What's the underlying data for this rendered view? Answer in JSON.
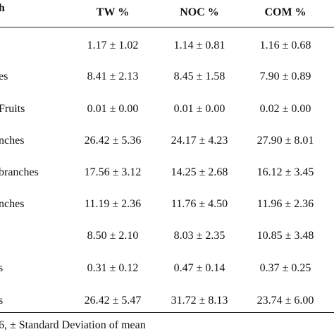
{
  "table": {
    "header": [
      "h",
      "TW %",
      "NOC %",
      "COM %"
    ],
    "rows": [
      {
        "cells": [
          "1.17 ± 1.02",
          "1.14 ± 0.81",
          "1.16 ± 0.68"
        ]
      },
      {
        "label": "es",
        "cells": [
          "8.41 ± 2.13",
          "8.45 ± 1.58",
          "7.90 ± 0.89"
        ]
      },
      {
        "label": "Fruits",
        "cells": [
          "0.01 ± 0.00",
          "0.01 ± 0.00",
          "0.02 ± 0.00"
        ]
      },
      {
        "label": "nches",
        "cells": [
          "26.42 ± 5.36",
          "24.17 ± 4.23",
          "27.90 ± 8.01"
        ]
      },
      {
        "label": "branches",
        "cells": [
          "17.56 ± 3.12",
          "14.25 ± 2.68",
          "16.12 ± 3.45"
        ]
      },
      {
        "label": "nches",
        "cells": [
          "11.19 ± 2.36",
          "11.76 ± 4.50",
          "11.96 ± 2.36"
        ]
      },
      {
        "cells": [
          "8.50 ± 2.10",
          "8.03 ± 2.35",
          "10.85 ± 3.48"
        ]
      },
      {
        "label": "s",
        "cells": [
          "0.31 ± 0.12",
          "0.47 ± 0.14",
          "0.37 ± 0.25"
        ]
      },
      {
        "label": "s",
        "cells": [
          "26.42 ± 5.47",
          "31.72 ± 8.13",
          "23.74 ± 6.00"
        ]
      }
    ],
    "footnote": "6, ± Standard Deviation of mean"
  }
}
